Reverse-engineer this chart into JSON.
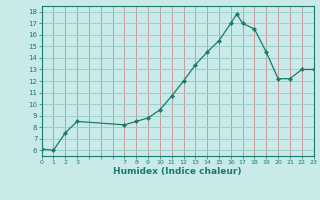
{
  "x": [
    0,
    1,
    2,
    3,
    7,
    8,
    9,
    10,
    11,
    12,
    13,
    14,
    15,
    16,
    16.5,
    17,
    18,
    19,
    20,
    21,
    22,
    23
  ],
  "y": [
    6.1,
    6.0,
    7.5,
    8.5,
    8.2,
    8.5,
    8.8,
    9.5,
    10.7,
    12.0,
    13.4,
    14.5,
    15.5,
    17.0,
    17.8,
    17.0,
    16.5,
    14.5,
    12.2,
    12.2,
    13.0,
    13.0
  ],
  "xlim": [
    0,
    23
  ],
  "ylim": [
    5.5,
    18.5
  ],
  "yticks": [
    6,
    7,
    8,
    9,
    10,
    11,
    12,
    13,
    14,
    15,
    16,
    17,
    18
  ],
  "xtick_labels": [
    "0",
    "1",
    "2",
    "3",
    "",
    "",
    "",
    "7",
    "8",
    "9",
    "10",
    "11",
    "12",
    "13",
    "14",
    "15",
    "16",
    "17",
    "18",
    "19",
    "20",
    "21",
    "22",
    "23"
  ],
  "xlabel": "Humidex (Indice chaleur)",
  "line_color": "#1a7a6e",
  "marker_color": "#1a7a6e",
  "bg_color": "#c8eae8",
  "grid_color_h": "#9ececa",
  "grid_color_v": "#c87878",
  "axis_color": "#1a7a6e"
}
